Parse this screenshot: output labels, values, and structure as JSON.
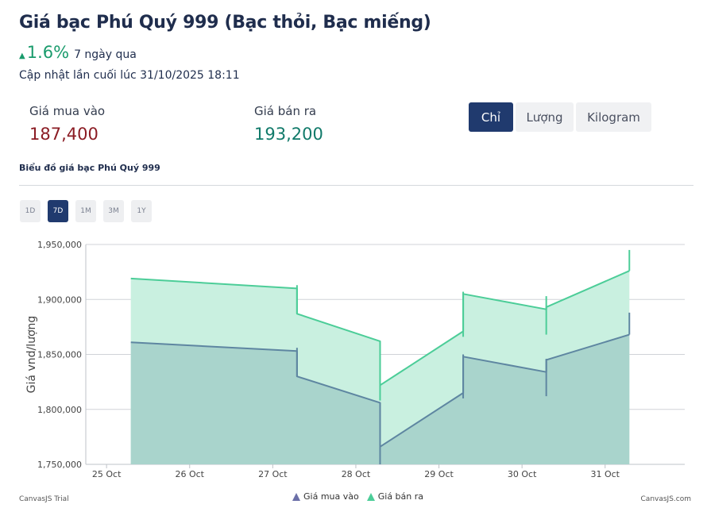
{
  "header": {
    "title": "Giá bạc Phú Quý 999 (Bạc thỏi, Bạc miếng)",
    "change_percent": "1.6%",
    "change_period": "7 ngày qua",
    "updated": "Cập nhật lần cuối lúc 31/10/2025 18:11"
  },
  "prices": {
    "buy_label": "Giá mua vào",
    "buy_value": "187,400",
    "sell_label": "Giá bán ra",
    "sell_value": "193,200"
  },
  "units": [
    "Chỉ",
    "Lượng",
    "Kilogram"
  ],
  "active_unit": "Chỉ",
  "chart_title": "Biểu đồ giá bạc Phú Quý 999",
  "ranges": [
    "1D",
    "7D",
    "1M",
    "3M",
    "1Y"
  ],
  "active_range": "7D",
  "footer": {
    "left": "CanvasJS Trial",
    "right": "CanvasJS.com"
  },
  "colors": {
    "buy_line": "#5e86a1",
    "buy_fill": "#a9d4cc",
    "sell_line": "#4ccd98",
    "sell_fill": "#c9f0e0",
    "legend_buy": "#6b6fa8",
    "legend_sell": "#4ccd98",
    "accent": "#203a6e"
  },
  "chart_data": {
    "type": "area",
    "ylabel": "Giá vnd/lượng",
    "xlabel": "",
    "ylim": [
      1750000,
      1950000
    ],
    "yticks": [
      1750000,
      1800000,
      1850000,
      1900000,
      1950000
    ],
    "ytick_labels": [
      "1,750,000",
      "1,800,000",
      "1,850,000",
      "1,900,000",
      "1,950,000"
    ],
    "xticks": [
      "25 Oct",
      "26 Oct",
      "27 Oct",
      "28 Oct",
      "29 Oct",
      "30 Oct",
      "31 Oct"
    ],
    "grid": true,
    "legend": "bottom",
    "series": [
      {
        "name": "Giá mua vào",
        "points": [
          [
            "2025-10-25 07:00",
            1861000
          ],
          [
            "2025-10-27 07:00",
            1853000
          ],
          [
            "2025-10-27 07:00",
            1830000
          ],
          [
            "2025-10-28 07:00",
            1806000
          ],
          [
            "2025-10-28 07:00",
            1766000
          ],
          [
            "2025-10-29 07:00",
            1815000
          ],
          [
            "2025-10-29 07:00",
            1848000
          ],
          [
            "2025-10-30 07:00",
            1834000
          ],
          [
            "2025-10-30 07:00",
            1845000
          ],
          [
            "2025-10-31 07:00",
            1868000
          ]
        ],
        "spikes": [
          [
            "2025-10-27 07:00",
            1830000,
            1856000
          ],
          [
            "2025-10-28 07:00",
            1750000,
            1806000
          ],
          [
            "2025-10-29 07:00",
            1810000,
            1850000
          ],
          [
            "2025-10-30 07:00",
            1812000,
            1846000
          ],
          [
            "2025-10-31 07:00",
            1868000,
            1888000
          ]
        ]
      },
      {
        "name": "Giá bán ra",
        "points": [
          [
            "2025-10-25 07:00",
            1919000
          ],
          [
            "2025-10-27 07:00",
            1910000
          ],
          [
            "2025-10-27 07:00",
            1887000
          ],
          [
            "2025-10-28 07:00",
            1862000
          ],
          [
            "2025-10-28 07:00",
            1822000
          ],
          [
            "2025-10-29 07:00",
            1871000
          ],
          [
            "2025-10-29 07:00",
            1905000
          ],
          [
            "2025-10-30 07:00",
            1891000
          ],
          [
            "2025-10-30 07:00",
            1893000
          ],
          [
            "2025-10-31 07:00",
            1926000
          ]
        ],
        "spikes": [
          [
            "2025-10-27 07:00",
            1887000,
            1913000
          ],
          [
            "2025-10-28 07:00",
            1808000,
            1862000
          ],
          [
            "2025-10-29 07:00",
            1866000,
            1907000
          ],
          [
            "2025-10-30 07:00",
            1868000,
            1903000
          ],
          [
            "2025-10-31 07:00",
            1926000,
            1945000
          ]
        ]
      }
    ]
  }
}
